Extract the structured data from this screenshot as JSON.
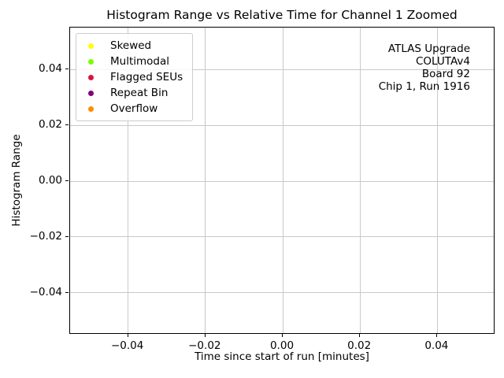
{
  "chart_data": {
    "type": "scatter",
    "title": "Histogram Range vs Relative Time for Channel 1 Zoomed",
    "xlabel": "Time since start of run [minutes]",
    "ylabel": "Histogram Range",
    "xlim": [
      -0.055,
      0.055
    ],
    "ylim": [
      -0.055,
      0.055
    ],
    "x_ticks": [
      -0.04,
      -0.02,
      0.0,
      0.02,
      0.04
    ],
    "y_ticks": [
      0.04,
      0.02,
      0.0,
      -0.02,
      -0.04
    ],
    "x_tick_labels": [
      "−0.04",
      "−0.02",
      "0.00",
      "0.02",
      "0.04"
    ],
    "y_tick_labels": [
      "0.04",
      "0.02",
      "0.00",
      "−0.02",
      "−0.04"
    ],
    "grid": true,
    "grid_color": "#c9c9c9",
    "frame_color": "#000000",
    "background_color": "#ffffff",
    "legend": {
      "position": "upper-left",
      "entries": [
        {
          "label": "Skewed",
          "color": "#ffff00"
        },
        {
          "label": "Multimodal",
          "color": "#7cfc00"
        },
        {
          "label": "Flagged SEUs",
          "color": "#dc143c"
        },
        {
          "label": "Repeat Bin",
          "color": "#800080"
        },
        {
          "label": "Overflow",
          "color": "#ff8c00"
        }
      ]
    },
    "series": [
      {
        "name": "Skewed",
        "color": "#ffff00",
        "x": [],
        "y": []
      },
      {
        "name": "Multimodal",
        "color": "#7cfc00",
        "x": [],
        "y": []
      },
      {
        "name": "Flagged SEUs",
        "color": "#dc143c",
        "x": [],
        "y": []
      },
      {
        "name": "Repeat Bin",
        "color": "#800080",
        "x": [],
        "y": []
      },
      {
        "name": "Overflow",
        "color": "#ff8c00",
        "x": [],
        "y": []
      }
    ],
    "annotation": {
      "align": "right",
      "lines": [
        "ATLAS Upgrade",
        "COLUTAv4",
        "Board 92",
        "Chip 1, Run 1916"
      ]
    }
  }
}
